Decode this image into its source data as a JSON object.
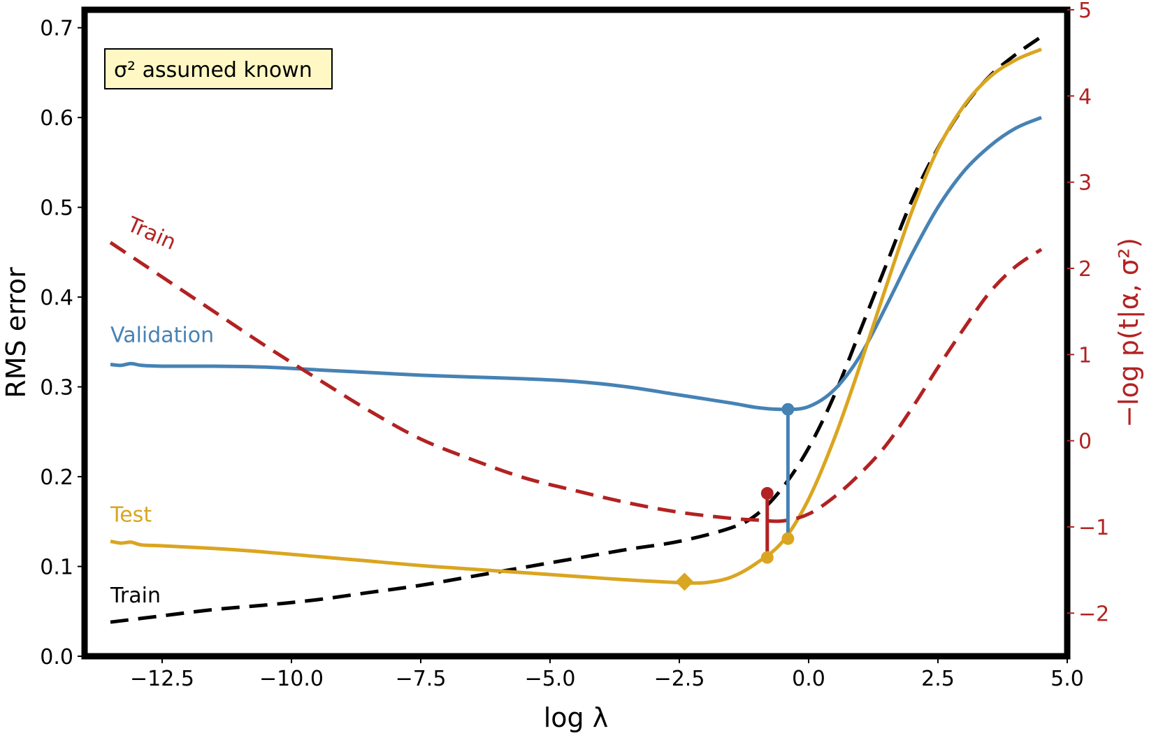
{
  "chart_data": {
    "type": "line",
    "xlabel": "log λ",
    "ylabel": "RMS error",
    "ylabel_right": "−log p(t|α, σ²)",
    "xlim": [
      -14,
      5
    ],
    "ylim": [
      0,
      0.72
    ],
    "ylim_right": [
      -2.5,
      5
    ],
    "xticks": [
      -12.5,
      -10.0,
      -7.5,
      -5.0,
      -2.5,
      0.0,
      2.5,
      5.0
    ],
    "xtick_labels": [
      "−12.5",
      "−10.0",
      "−7.5",
      "−5.0",
      "−2.5",
      "0.0",
      "2.5",
      "5.0"
    ],
    "yticks": [
      0.0,
      0.1,
      0.2,
      0.3,
      0.4,
      0.5,
      0.6,
      0.7
    ],
    "ytick_labels": [
      "0.0",
      "0.1",
      "0.2",
      "0.3",
      "0.4",
      "0.5",
      "0.6",
      "0.7"
    ],
    "yticks_right": [
      -2,
      -1,
      0,
      1,
      2,
      3,
      4,
      5
    ],
    "ytick_labels_right": [
      "−2",
      "−1",
      "0",
      "1",
      "2",
      "3",
      "4",
      "5"
    ],
    "grid": false,
    "annotation": "σ² assumed known",
    "colors": {
      "train": "#000000",
      "validation": "#4682b4",
      "test": "#daa520",
      "evidence": "#b22222",
      "annotation_bg": "#fff8c4"
    },
    "series": [
      {
        "name": "Train",
        "axis": "left",
        "style": "dashed",
        "color": "#000000",
        "x": [
          -13.5,
          -12.5,
          -11.5,
          -10.5,
          -9.5,
          -8.5,
          -7.5,
          -6.5,
          -5.5,
          -4.5,
          -3.5,
          -2.5,
          -1.5,
          -1.0,
          -0.5,
          0.0,
          0.5,
          1.0,
          1.5,
          2.0,
          2.5,
          3.0,
          3.5,
          4.0,
          4.5
        ],
        "values": [
          0.038,
          0.045,
          0.052,
          0.057,
          0.063,
          0.071,
          0.079,
          0.089,
          0.099,
          0.109,
          0.119,
          0.128,
          0.143,
          0.158,
          0.188,
          0.232,
          0.291,
          0.363,
          0.436,
          0.508,
          0.566,
          0.612,
          0.646,
          0.67,
          0.69
        ]
      },
      {
        "name": "Validation",
        "axis": "left",
        "style": "solid",
        "color": "#4682b4",
        "x": [
          -13.5,
          -13.3,
          -13.1,
          -12.9,
          -12.5,
          -11.5,
          -10.5,
          -9.5,
          -8.5,
          -7.5,
          -6.5,
          -5.5,
          -4.5,
          -3.5,
          -2.5,
          -1.5,
          -1.0,
          -0.5,
          0.0,
          0.5,
          1.0,
          1.5,
          2.0,
          2.5,
          3.0,
          3.5,
          4.0,
          4.5
        ],
        "values": [
          0.325,
          0.324,
          0.326,
          0.324,
          0.323,
          0.323,
          0.322,
          0.319,
          0.316,
          0.313,
          0.311,
          0.309,
          0.306,
          0.3,
          0.291,
          0.282,
          0.277,
          0.275,
          0.278,
          0.297,
          0.335,
          0.39,
          0.448,
          0.5,
          0.54,
          0.568,
          0.588,
          0.6
        ]
      },
      {
        "name": "Test",
        "axis": "left",
        "style": "solid",
        "color": "#daa520",
        "x": [
          -13.5,
          -13.3,
          -13.1,
          -12.9,
          -12.5,
          -11.5,
          -10.5,
          -9.5,
          -8.5,
          -7.5,
          -6.5,
          -5.5,
          -4.5,
          -3.5,
          -2.5,
          -2.0,
          -1.5,
          -1.0,
          -0.5,
          0.0,
          0.5,
          1.0,
          1.5,
          2.0,
          2.5,
          3.0,
          3.5,
          4.0,
          4.5
        ],
        "values": [
          0.128,
          0.126,
          0.127,
          0.124,
          0.123,
          0.12,
          0.116,
          0.111,
          0.106,
          0.101,
          0.097,
          0.093,
          0.089,
          0.085,
          0.082,
          0.082,
          0.088,
          0.104,
          0.128,
          0.175,
          0.243,
          0.325,
          0.412,
          0.496,
          0.565,
          0.613,
          0.645,
          0.664,
          0.676
        ]
      },
      {
        "name": "Train",
        "axis": "right",
        "style": "dashed",
        "color": "#b22222",
        "x": [
          -13.5,
          -12.5,
          -11.5,
          -10.5,
          -9.5,
          -8.5,
          -7.5,
          -6.5,
          -5.5,
          -4.5,
          -3.5,
          -2.5,
          -1.5,
          -1.0,
          -0.5,
          0.0,
          0.5,
          1.0,
          1.5,
          2.0,
          2.5,
          3.0,
          3.5,
          4.0,
          4.5
        ],
        "values": [
          2.3,
          1.9,
          1.5,
          1.1,
          0.72,
          0.35,
          0.02,
          -0.22,
          -0.43,
          -0.58,
          -0.72,
          -0.83,
          -0.9,
          -0.92,
          -0.93,
          -0.85,
          -0.65,
          -0.38,
          -0.05,
          0.38,
          0.85,
          1.3,
          1.72,
          2.02,
          2.22
        ]
      }
    ],
    "markers": [
      {
        "series": "Validation",
        "type": "circle",
        "x": -0.4,
        "y": 0.275,
        "axis": "left",
        "color": "#4682b4"
      },
      {
        "series": "Test",
        "type": "circle",
        "x": -0.4,
        "y": 0.131,
        "axis": "left",
        "color": "#daa520"
      },
      {
        "series": "Test",
        "type": "circle",
        "x": -0.8,
        "y": 0.11,
        "axis": "left",
        "color": "#daa520"
      },
      {
        "series": "Test",
        "type": "diamond",
        "x": -2.4,
        "y": 0.083,
        "axis": "left",
        "color": "#daa520"
      },
      {
        "series": "Train",
        "type": "circle",
        "x": -0.8,
        "y": -0.61,
        "axis": "right",
        "color": "#b22222"
      }
    ],
    "vertical_lines": [
      {
        "x": -0.4,
        "from": 0.131,
        "to": 0.275,
        "axis": "left",
        "color": "#4682b4"
      },
      {
        "x": -0.8,
        "from": 0.11,
        "to": 0.183,
        "axis": "left",
        "color": "#b22222"
      }
    ],
    "series_labels": [
      {
        "text": "Validation",
        "x": -13.5,
        "y": 0.35,
        "axis": "left",
        "color": "#4682b4",
        "angle": 0
      },
      {
        "text": "Test",
        "x": -13.5,
        "y": 0.15,
        "axis": "left",
        "color": "#daa520",
        "angle": 0
      },
      {
        "text": "Train",
        "x": -13.5,
        "y": 0.06,
        "axis": "left",
        "color": "#000000",
        "angle": 0
      },
      {
        "text": "Train",
        "x": -13.2,
        "y": 2.45,
        "axis": "right",
        "color": "#b22222",
        "angle": 24
      }
    ]
  }
}
